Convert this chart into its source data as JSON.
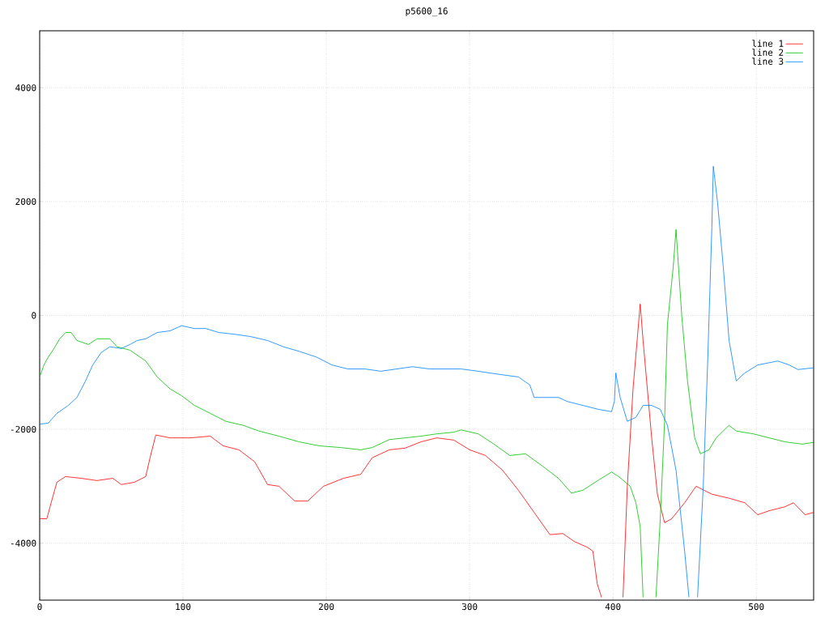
{
  "chart_data": {
    "type": "line",
    "title": "p5600_16",
    "xlim": [
      0,
      540
    ],
    "ylim": [
      -5000,
      5000
    ],
    "xticks": [
      0,
      100,
      200,
      300,
      400,
      500
    ],
    "yticks": [
      -4000,
      -2000,
      0,
      2000,
      4000
    ],
    "grid": true,
    "legend": "top right",
    "series": [
      {
        "name": "line 1",
        "color": "#ff0000",
        "x": [
          0,
          5,
          8,
          12,
          18,
          29,
          40,
          51,
          57,
          66,
          74,
          77,
          81,
          91,
          105,
          119,
          128,
          139,
          150,
          159,
          167,
          178,
          187,
          198,
          212,
          224,
          232,
          244,
          255,
          266,
          277,
          289,
          300,
          311,
          323,
          334,
          345,
          356,
          365,
          373,
          382,
          386,
          389,
          392,
          400,
          407,
          410,
          414,
          419,
          421,
          427,
          431,
          436,
          441,
          450,
          458,
          469,
          481,
          492,
          501,
          509,
          520,
          526,
          534,
          540
        ],
        "values": [
          -3570,
          -3570,
          -3290,
          -2930,
          -2830,
          -2860,
          -2900,
          -2860,
          -2970,
          -2930,
          -2830,
          -2500,
          -2100,
          -2150,
          -2150,
          -2120,
          -2290,
          -2360,
          -2570,
          -2970,
          -3000,
          -3260,
          -3260,
          -3000,
          -2860,
          -2790,
          -2500,
          -2360,
          -2330,
          -2220,
          -2150,
          -2190,
          -2360,
          -2460,
          -2720,
          -3070,
          -3460,
          -3850,
          -3830,
          -3970,
          -4070,
          -4140,
          -4710,
          -4950,
          null,
          -4950,
          -3000,
          -1290,
          200,
          -440,
          -2150,
          -3140,
          -3640,
          -3570,
          -3290,
          -3000,
          -3140,
          -3210,
          -3290,
          -3500,
          -3430,
          -3360,
          -3290,
          -3500,
          -3460
        ]
      },
      {
        "name": "line 2",
        "color": "#00c000",
        "x": [
          0,
          3,
          6,
          10,
          14,
          18,
          22,
          26,
          34,
          40,
          49,
          54,
          63,
          74,
          82,
          91,
          99,
          108,
          119,
          130,
          142,
          153,
          167,
          181,
          195,
          210,
          224,
          232,
          244,
          255,
          266,
          277,
          289,
          294,
          306,
          317,
          328,
          339,
          351,
          362,
          371,
          379,
          390,
          399,
          404,
          412,
          416,
          419,
          421,
          425,
          430,
          433,
          436,
          438,
          442,
          444,
          448,
          452,
          457,
          461,
          467,
          472,
          481,
          486,
          498,
          509,
          520,
          532,
          540
        ],
        "values": [
          -1080,
          -870,
          -730,
          -580,
          -410,
          -300,
          -300,
          -440,
          -510,
          -410,
          -410,
          -550,
          -610,
          -800,
          -1080,
          -1290,
          -1410,
          -1580,
          -1720,
          -1860,
          -1930,
          -2030,
          -2120,
          -2220,
          -2290,
          -2320,
          -2360,
          -2320,
          -2180,
          -2150,
          -2120,
          -2080,
          -2050,
          -2010,
          -2080,
          -2260,
          -2460,
          -2430,
          -2650,
          -2860,
          -3120,
          -3070,
          -2890,
          -2750,
          -2830,
          -3000,
          -3290,
          -3710,
          -4950,
          null,
          -4950,
          -3570,
          -1860,
          -160,
          840,
          1510,
          -10,
          -1150,
          -2150,
          -2430,
          -2360,
          -2150,
          -1930,
          -2030,
          -2080,
          -2150,
          -2220,
          -2260,
          -2230
        ]
      },
      {
        "name": "line 3",
        "color": "#0080ff",
        "x": [
          0,
          6,
          12,
          20,
          26,
          32,
          37,
          43,
          49,
          57,
          63,
          68,
          74,
          82,
          91,
          99,
          108,
          116,
          125,
          136,
          147,
          159,
          170,
          181,
          193,
          204,
          215,
          227,
          238,
          249,
          260,
          272,
          283,
          294,
          306,
          322,
          334,
          342,
          345,
          351,
          362,
          368,
          379,
          390,
          399,
          401,
          402,
          405,
          410,
          416,
          421,
          427,
          433,
          438,
          444,
          450,
          453,
          456,
          459,
          463,
          466,
          469,
          470,
          473,
          477,
          481,
          486,
          492,
          501,
          515,
          523,
          529,
          540
        ],
        "values": [
          -1910,
          -1890,
          -1720,
          -1580,
          -1440,
          -1150,
          -870,
          -650,
          -550,
          -580,
          -510,
          -440,
          -410,
          -300,
          -270,
          -180,
          -230,
          -230,
          -300,
          -330,
          -370,
          -440,
          -550,
          -630,
          -730,
          -870,
          -940,
          -940,
          -980,
          -940,
          -900,
          -940,
          -940,
          -940,
          -980,
          -1040,
          -1080,
          -1220,
          -1440,
          -1440,
          -1440,
          -1510,
          -1580,
          -1650,
          -1690,
          -1510,
          -1010,
          -1440,
          -1860,
          -1790,
          -1580,
          -1580,
          -1650,
          -1930,
          -2720,
          -4140,
          -4950,
          null,
          -4950,
          -3000,
          -870,
          1550,
          2620,
          1980,
          840,
          -440,
          -1150,
          -1010,
          -870,
          -800,
          -870,
          -950,
          -920
        ]
      }
    ]
  }
}
